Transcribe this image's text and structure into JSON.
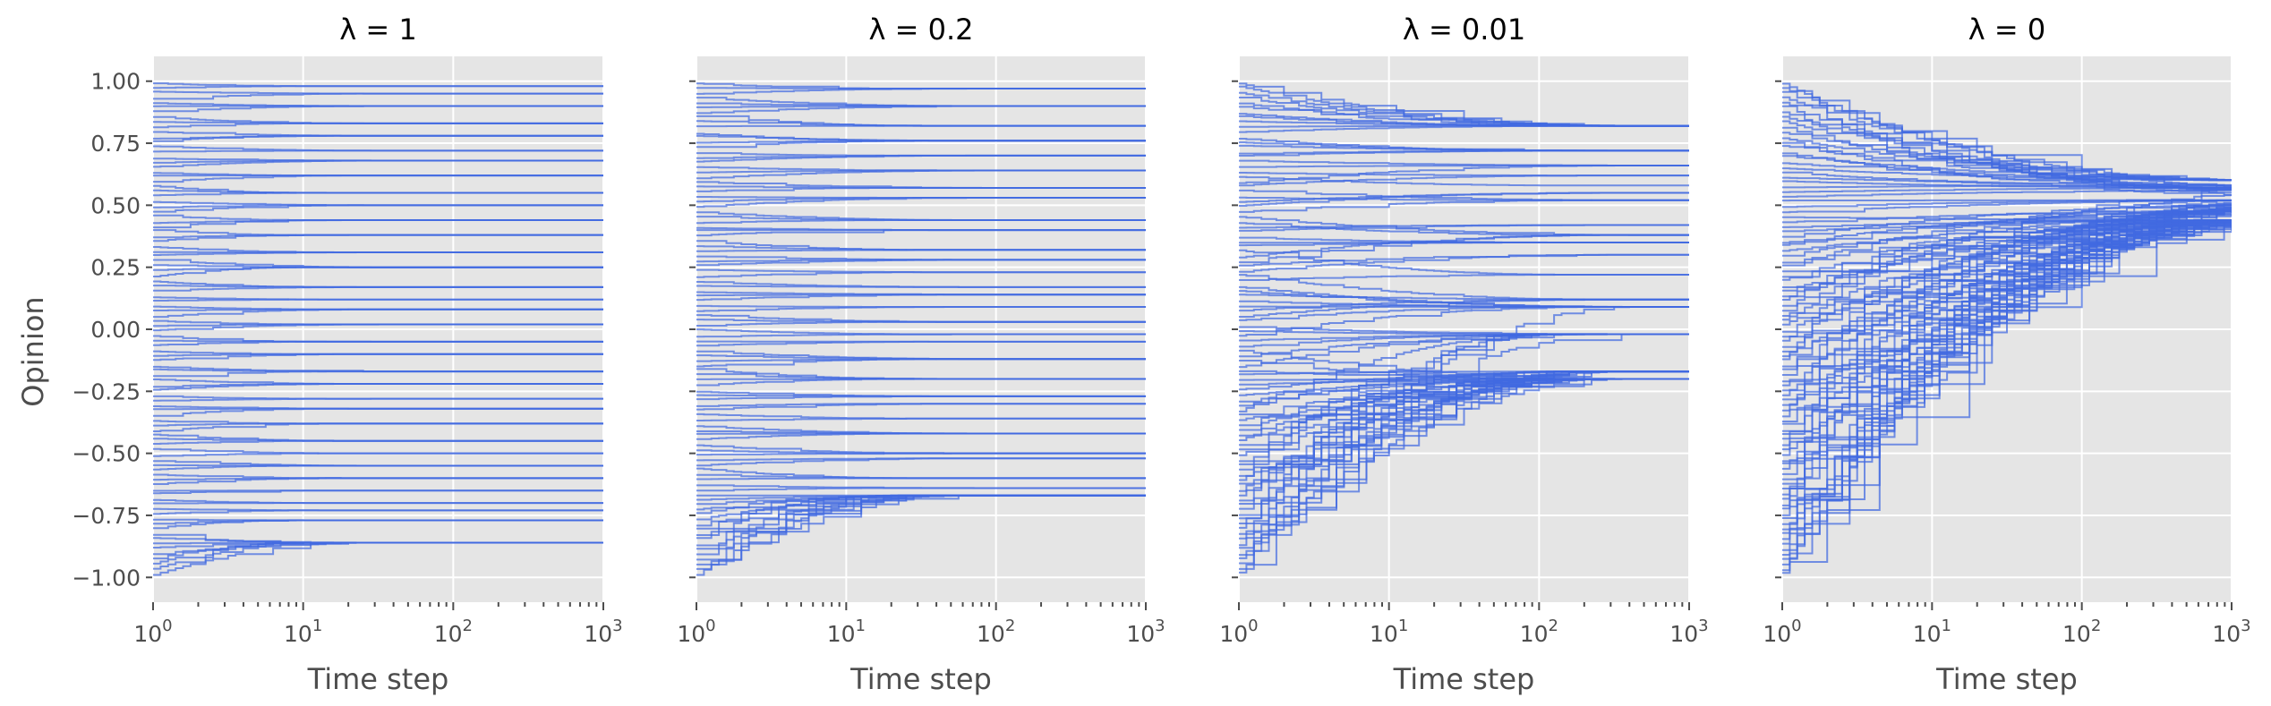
{
  "figure": {
    "ylabel": "Opinion",
    "xlabel": "Time step",
    "colors": {
      "line": "#4169e1",
      "background": "#e5e5e5",
      "grid": "#ffffff",
      "text": "#4d4d4d"
    }
  },
  "chart_data": [
    {
      "type": "line",
      "title": "λ = 1",
      "xlabel": "Time step",
      "ylabel": "Opinion",
      "xscale": "log",
      "xlim": [
        1,
        1000
      ],
      "ylim": [
        -1.1,
        1.1
      ],
      "xticks": [
        "10^0",
        "10^1",
        "10^2",
        "10^3"
      ],
      "yticks": [
        "1.00",
        "0.75",
        "0.50",
        "0.25",
        "0.00",
        "−0.25",
        "−0.50",
        "−0.75",
        "−1.00"
      ],
      "grid": true,
      "series_count": 100,
      "shared_y_with_first_panel": false,
      "final_opinion_clusters": [
        0.98,
        0.95,
        0.9,
        0.83,
        0.78,
        0.72,
        0.68,
        0.62,
        0.55,
        0.5,
        0.44,
        0.38,
        0.31,
        0.25,
        0.17,
        0.12,
        0.08,
        0.02,
        -0.05,
        -0.1,
        -0.17,
        -0.22,
        -0.28,
        -0.32,
        -0.38,
        -0.45,
        -0.5,
        -0.55,
        -0.6,
        -0.65,
        -0.7,
        -0.73,
        -0.77,
        -0.86
      ]
    },
    {
      "type": "line",
      "title": "λ = 0.2",
      "xlabel": "Time step",
      "xscale": "log",
      "xlim": [
        1,
        1000
      ],
      "ylim": [
        -1.1,
        1.1
      ],
      "xticks": [
        "10^0",
        "10^1",
        "10^2",
        "10^3"
      ],
      "grid": true,
      "series_count": 100,
      "final_opinion_clusters": [
        0.97,
        0.9,
        0.82,
        0.76,
        0.7,
        0.64,
        0.57,
        0.53,
        0.44,
        0.4,
        0.32,
        0.28,
        0.23,
        0.17,
        0.14,
        0.09,
        0.03,
        -0.02,
        -0.05,
        -0.12,
        -0.2,
        -0.27,
        -0.3,
        -0.36,
        -0.42,
        -0.5,
        -0.52,
        -0.6,
        -0.64,
        -0.67
      ]
    },
    {
      "type": "line",
      "title": "λ = 0.01",
      "xlabel": "Time step",
      "xscale": "log",
      "xlim": [
        1,
        1000
      ],
      "ylim": [
        -1.1,
        1.1
      ],
      "xticks": [
        "10^0",
        "10^1",
        "10^2",
        "10^3"
      ],
      "grid": true,
      "series_count": 100,
      "final_opinion_clusters": [
        0.82,
        0.72,
        0.66,
        0.62,
        0.58,
        0.55,
        0.52,
        0.48,
        0.42,
        0.38,
        0.35,
        0.3,
        0.22,
        0.12,
        0.09,
        -0.02,
        -0.17,
        -0.2
      ]
    },
    {
      "type": "line",
      "title": "λ = 0",
      "xlabel": "Time step",
      "xscale": "log",
      "xlim": [
        1,
        1000
      ],
      "ylim": [
        -1.1,
        1.1
      ],
      "xticks": [
        "10^0",
        "10^1",
        "10^2",
        "10^3"
      ],
      "grid": true,
      "series_count": 100,
      "final_opinion_clusters": [
        0.6,
        0.58,
        0.57,
        0.56,
        0.55,
        0.54,
        0.52,
        0.5,
        0.48,
        0.44
      ]
    }
  ]
}
